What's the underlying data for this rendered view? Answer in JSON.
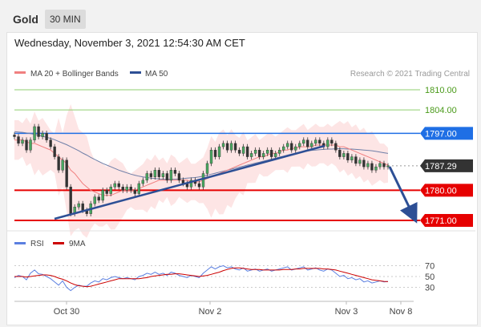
{
  "header": {
    "title": "Gold",
    "timeframe": "30 MIN"
  },
  "timestamp": "Wednesday, November 3, 2021 12:54:30 AM CET",
  "legend": {
    "ma20": "MA 20 + Bollinger Bands",
    "ma50": "MA 50",
    "credit": "Research © 2021 Trading Central",
    "rsi": "RSI",
    "ma9": "9MA"
  },
  "colors": {
    "up": "#48a860",
    "down": "#333333",
    "resistance_green": "#8fcf6f",
    "blue_level": "#1f6fe5",
    "red_level": "#e60000",
    "current": "#333333",
    "ma20": "#f08080",
    "ma50": "#6f7fa8",
    "trend": "#2d4f95",
    "rsi": "#5b7fe0",
    "ma9": "#cc0000"
  },
  "levels": [
    {
      "id": "r2",
      "label": "1810.00",
      "value": 1810,
      "kind": "green-text"
    },
    {
      "id": "r1",
      "label": "1804.00",
      "value": 1804,
      "kind": "green-text"
    },
    {
      "id": "pivot",
      "label": "1797.00",
      "value": 1797,
      "kind": "blue"
    },
    {
      "id": "current",
      "label": "1787.29",
      "value": 1787.29,
      "kind": "current"
    },
    {
      "id": "s1",
      "label": "1780.00",
      "value": 1780,
      "kind": "red"
    },
    {
      "id": "s2",
      "label": "1771.00",
      "value": 1771,
      "kind": "red"
    }
  ],
  "rsi_levels": [
    "70",
    "50",
    "30"
  ],
  "x_axis": [
    "Oct 30",
    "Nov 2",
    "Nov 3",
    "Nov 8"
  ],
  "chart_data": {
    "type": "candlestick",
    "price_range": [
      1768,
      1814
    ],
    "rsi_range": [
      10,
      90
    ],
    "closes": [
      1796,
      1794,
      1795,
      1792,
      1795,
      1799,
      1796,
      1797,
      1795,
      1793,
      1790,
      1786,
      1789,
      1781,
      1773,
      1775,
      1776,
      1774,
      1773,
      1776,
      1778,
      1777,
      1780,
      1779,
      1781,
      1782,
      1781,
      1780,
      1781,
      1780,
      1779,
      1782,
      1783,
      1785,
      1784,
      1786,
      1784,
      1785,
      1783,
      1786,
      1785,
      1783,
      1782,
      1781,
      1783,
      1782,
      1781,
      1785,
      1788,
      1792,
      1790,
      1793,
      1794,
      1792,
      1794,
      1792,
      1791,
      1793,
      1790,
      1791,
      1792,
      1790,
      1791,
      1792,
      1790,
      1791,
      1792,
      1793,
      1794,
      1792,
      1793,
      1794,
      1795,
      1793,
      1794,
      1795,
      1794,
      1793,
      1795,
      1794,
      1792,
      1790,
      1791,
      1789,
      1790,
      1788,
      1789,
      1787,
      1788,
      1786,
      1787,
      1788,
      1787,
      1787.29
    ],
    "ma20": [
      1795,
      1795,
      1795,
      1794.5,
      1794,
      1794,
      1793.5,
      1793,
      1792.5,
      1792,
      1791,
      1790,
      1789,
      1788,
      1786,
      1785,
      1783.5,
      1782,
      1781,
      1780,
      1779.5,
      1779,
      1778.5,
      1778.5,
      1778.5,
      1779,
      1779.5,
      1780,
      1780,
      1780,
      1780,
      1780.5,
      1781,
      1781.5,
      1782,
      1782.5,
      1783,
      1783,
      1783,
      1783,
      1783,
      1783,
      1783,
      1783,
      1782.5,
      1782.5,
      1782.5,
      1783,
      1783.5,
      1784,
      1784.5,
      1785,
      1785.5,
      1786,
      1786.5,
      1787,
      1787.5,
      1788,
      1788.5,
      1789,
      1789.5,
      1790,
      1790,
      1790.5,
      1791,
      1791,
      1791.5,
      1792,
      1792,
      1792.5,
      1792.5,
      1793,
      1793,
      1793,
      1793,
      1793.5,
      1793.5,
      1793.5,
      1793.5,
      1793.5,
      1793.5,
      1793,
      1793,
      1792.5,
      1792,
      1791.5,
      1791,
      1790.5,
      1790,
      1789.5,
      1789,
      1788.5,
      1788,
      1787.5
    ],
    "ma50": [
      1797.5,
      1797.4,
      1797.3,
      1797.1,
      1796.9,
      1796.7,
      1796.4,
      1796.1,
      1795.8,
      1795.5,
      1795.1,
      1794.6,
      1794.1,
      1793.6,
      1793,
      1792.4,
      1791.8,
      1791.1,
      1790.5,
      1789.8,
      1789.2,
      1788.6,
      1788,
      1787.5,
      1787,
      1786.5,
      1786,
      1785.6,
      1785.2,
      1784.8,
      1784.5,
      1784.2,
      1784,
      1783.8,
      1783.6,
      1783.5,
      1783.4,
      1783.3,
      1783.3,
      1783.3,
      1783.3,
      1783.4,
      1783.5,
      1783.6,
      1783.7,
      1783.8,
      1784,
      1784.2,
      1784.5,
      1784.8,
      1785.1,
      1785.4,
      1785.7,
      1786,
      1786.3,
      1786.6,
      1786.9,
      1787.2,
      1787.5,
      1787.8,
      1788.1,
      1788.4,
      1788.7,
      1789,
      1789.3,
      1789.6,
      1789.9,
      1790.2,
      1790.5,
      1790.8,
      1791,
      1791.3,
      1791.5,
      1791.7,
      1791.9,
      1792,
      1792.1,
      1792.2,
      1792.3,
      1792.3,
      1792.4,
      1792.4,
      1792.4,
      1792.3,
      1792.3,
      1792.2,
      1792.1,
      1792,
      1791.9,
      1791.8,
      1791.6,
      1791.4,
      1791.2,
      1791
    ],
    "rsi": [
      48,
      52,
      50,
      44,
      56,
      62,
      55,
      54,
      50,
      46,
      40,
      34,
      42,
      30,
      24,
      30,
      34,
      32,
      32,
      38,
      42,
      40,
      46,
      44,
      48,
      50,
      48,
      46,
      48,
      46,
      44,
      50,
      52,
      56,
      54,
      58,
      54,
      56,
      52,
      58,
      56,
      52,
      50,
      48,
      52,
      50,
      48,
      56,
      62,
      68,
      64,
      68,
      70,
      66,
      68,
      64,
      62,
      66,
      60,
      62,
      64,
      60,
      62,
      64,
      60,
      62,
      64,
      66,
      68,
      62,
      64,
      66,
      68,
      62,
      64,
      66,
      62,
      60,
      64,
      62,
      56,
      50,
      52,
      46,
      48,
      44,
      46,
      40,
      42,
      38,
      40,
      42,
      40,
      41
    ],
    "ma9": [
      50,
      50,
      50,
      49,
      50,
      51,
      52,
      53,
      53,
      52,
      50,
      47,
      45,
      42,
      38,
      35,
      33,
      32,
      31,
      32,
      34,
      36,
      38,
      40,
      42,
      44,
      46,
      46,
      46,
      46,
      46,
      46,
      47,
      48,
      50,
      51,
      52,
      53,
      54,
      54,
      55,
      55,
      54,
      53,
      52,
      51,
      50,
      51,
      52,
      54,
      56,
      58,
      61,
      63,
      65,
      66,
      66,
      65,
      64,
      63,
      63,
      63,
      62,
      62,
      62,
      62,
      62,
      63,
      63,
      63,
      64,
      64,
      65,
      65,
      65,
      65,
      65,
      64,
      64,
      63,
      62,
      60,
      58,
      56,
      54,
      52,
      50,
      48,
      46,
      44,
      43,
      42,
      41,
      40.5
    ]
  }
}
